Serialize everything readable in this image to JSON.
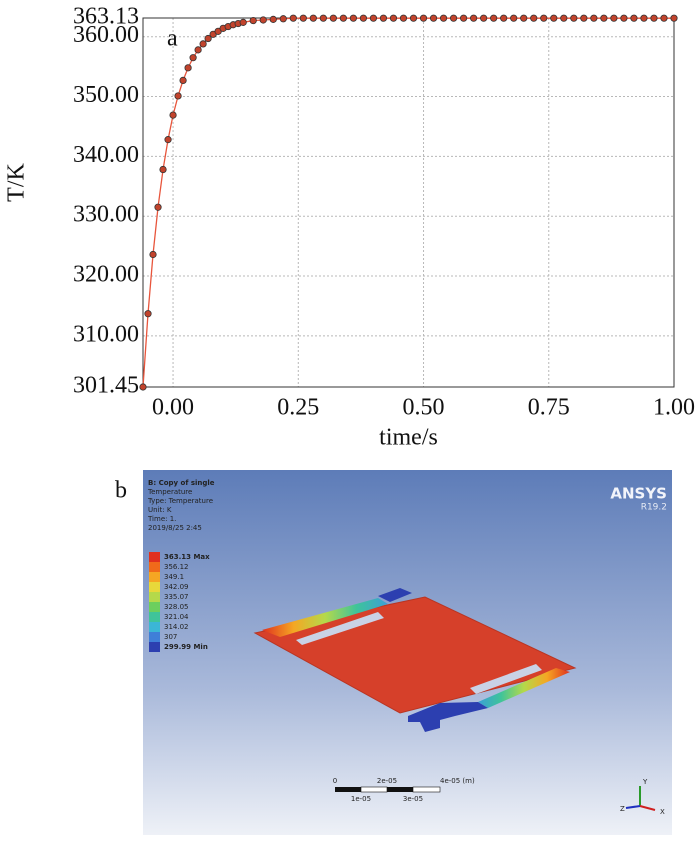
{
  "chart_data": {
    "type": "line",
    "annotation": "a",
    "x_label": "time/s",
    "y_label": "T/K",
    "x": [
      -0.06,
      -0.05,
      -0.04,
      -0.03,
      -0.02,
      -0.01,
      0,
      0.01,
      0.02,
      0.03,
      0.04,
      0.05,
      0.06,
      0.07,
      0.08,
      0.09,
      0.1,
      0.11,
      0.12,
      0.13,
      0.14,
      0.16,
      0.18,
      0.2,
      0.22,
      0.24,
      0.26,
      0.28,
      0.3,
      0.32,
      0.34,
      0.36,
      0.38,
      0.4,
      0.42,
      0.44,
      0.46,
      0.48,
      0.5,
      0.52,
      0.54,
      0.56,
      0.58,
      0.6,
      0.62,
      0.64,
      0.66,
      0.68,
      0.7,
      0.72,
      0.74,
      0.76,
      0.78,
      0.8,
      0.82,
      0.84,
      0.86,
      0.88,
      0.9,
      0.92,
      0.94,
      0.96,
      0.98,
      1.0
    ],
    "values": [
      301.45,
      313.7,
      323.6,
      331.5,
      337.8,
      342.8,
      346.9,
      350.1,
      352.7,
      354.8,
      356.5,
      357.8,
      358.8,
      359.7,
      360.4,
      360.9,
      361.4,
      361.7,
      362.0,
      362.2,
      362.4,
      362.7,
      362.8,
      362.9,
      363.0,
      363.1,
      363.1,
      363.1,
      363.1,
      363.1,
      363.1,
      363.1,
      363.1,
      363.1,
      363.1,
      363.1,
      363.1,
      363.1,
      363.1,
      363.1,
      363.1,
      363.1,
      363.1,
      363.1,
      363.1,
      363.1,
      363.1,
      363.1,
      363.1,
      363.1,
      363.1,
      363.1,
      363.1,
      363.1,
      363.1,
      363.1,
      363.1,
      363.1,
      363.1,
      363.1,
      363.1,
      363.1,
      363.1,
      363.1
    ],
    "color": "#e8553c",
    "marker_color": "#c2432c",
    "xlim": [
      -0.06,
      1.0
    ],
    "ylim": [
      301.45,
      363.13
    ],
    "xticks": [
      {
        "value": 0,
        "label": "0.00"
      },
      0.25,
      {
        "value": 0.5,
        "label": "0.50"
      },
      0.75,
      {
        "value": 1,
        "label": "1.00"
      }
    ],
    "yticks": [
      301.45,
      {
        "value": 310,
        "label": "310.00"
      },
      {
        "value": 320,
        "label": "320.00"
      },
      {
        "value": 330,
        "label": "330.00"
      },
      {
        "value": 340,
        "label": "340.00"
      },
      {
        "value": 350,
        "label": "350.00"
      },
      {
        "value": 360,
        "label": "360.00"
      },
      363.13
    ],
    "grid": true
  },
  "panel_b": {
    "label": "b",
    "info": [
      "B: Copy of single",
      "Temperature",
      "Type: Temperature",
      "Unit: K",
      "Time: 1.",
      "2019/8/25 2:45"
    ],
    "legend": [
      {
        "label": "363.13 Max",
        "color": "#e0301e"
      },
      {
        "label": "356.12",
        "color": "#f06a1a"
      },
      {
        "label": "349.1",
        "color": "#f5a623"
      },
      {
        "label": "342.09",
        "color": "#e8d83a"
      },
      {
        "label": "335.07",
        "color": "#b5d94a"
      },
      {
        "label": "328.05",
        "color": "#6ccf5e"
      },
      {
        "label": "321.04",
        "color": "#3fc49a"
      },
      {
        "label": "314.02",
        "color": "#3bb6d6"
      },
      {
        "label": "307",
        "color": "#3f7fd8"
      },
      {
        "label": "299.99 Min",
        "color": "#2c3fb0"
      }
    ],
    "brand": "ANSYS",
    "version": "R19.2",
    "scale_top": [
      "0",
      "2e-05",
      "4e-05 (m)"
    ],
    "scale_bottom": [
      "1e-05",
      "3e-05"
    ],
    "axes": [
      "Y",
      "Z",
      "X"
    ]
  }
}
